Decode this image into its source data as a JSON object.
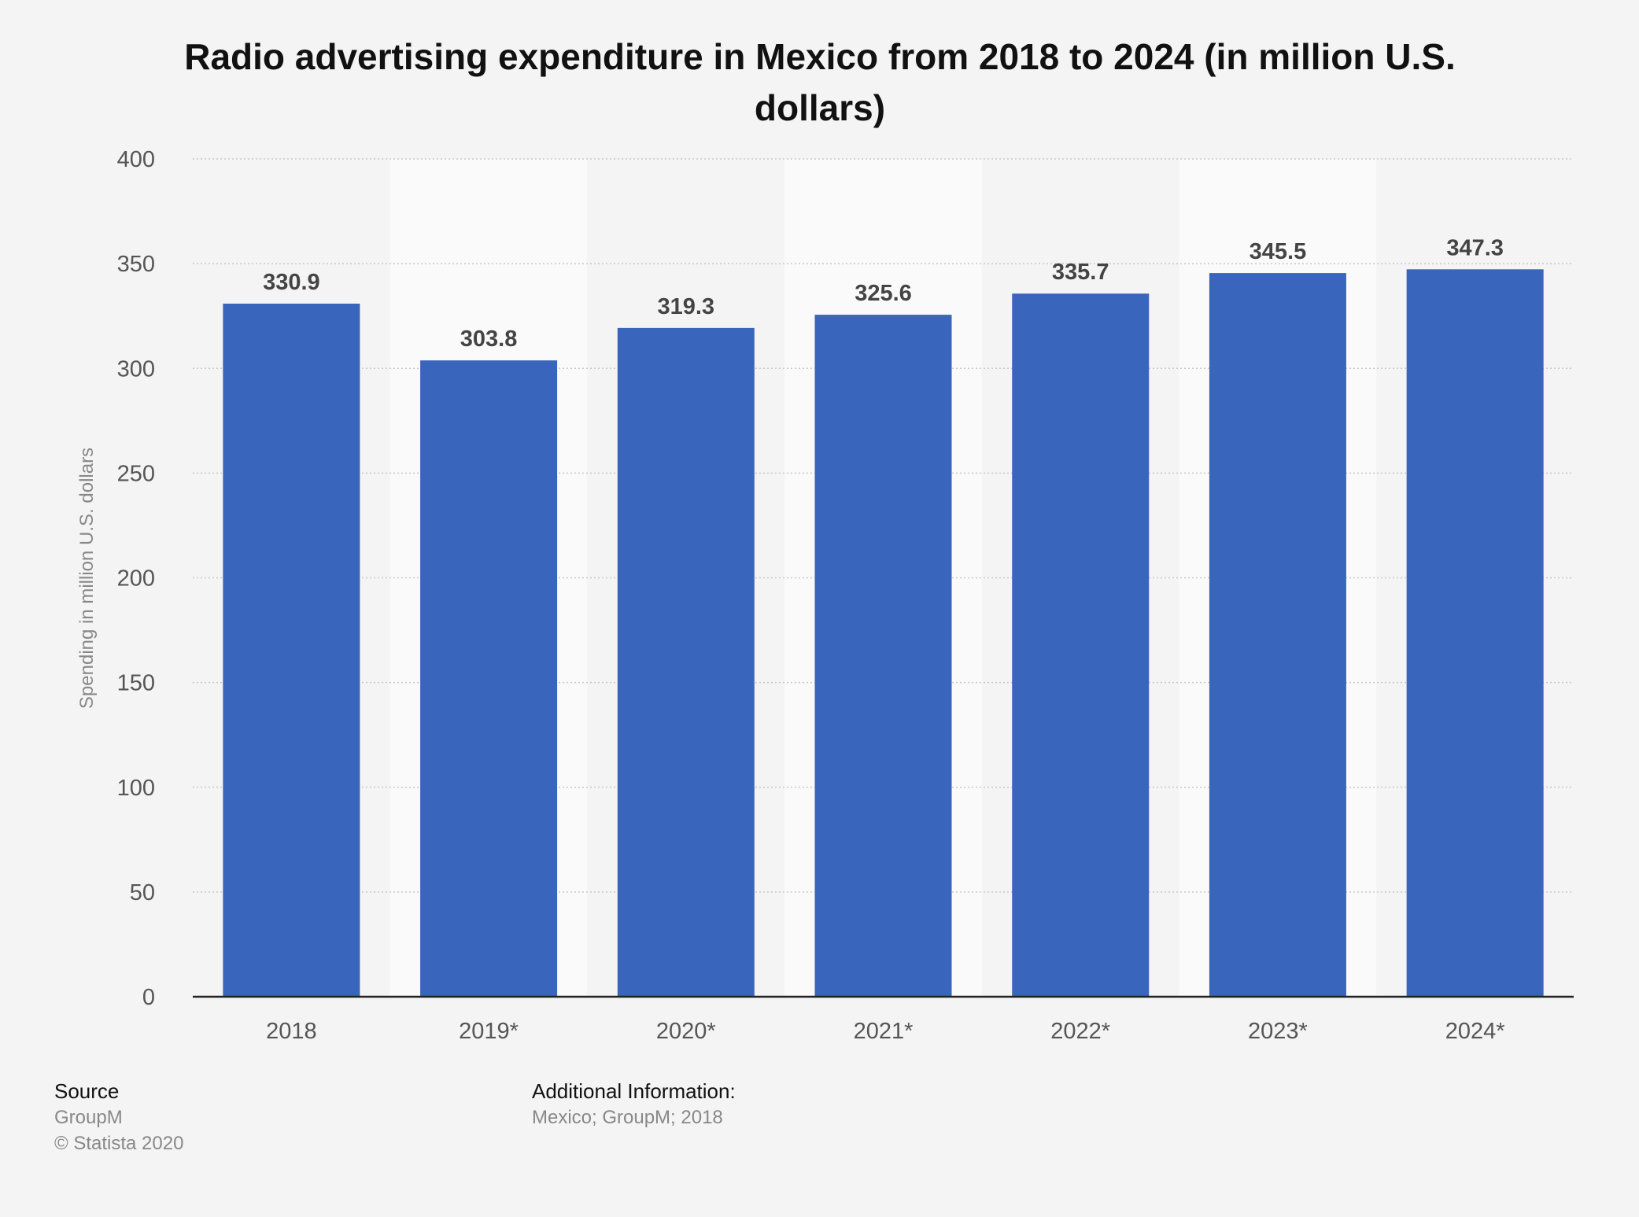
{
  "chart_data": {
    "type": "bar",
    "title_line1": "Radio advertising expenditure in Mexico from 2018 to 2024 (in million U.S.",
    "title_line2": "dollars)",
    "ylabel": "Spending in million U.S. dollars",
    "xlabel": "",
    "categories": [
      "2018",
      "2019*",
      "2020*",
      "2021*",
      "2022*",
      "2023*",
      "2024*"
    ],
    "values": [
      330.9,
      303.8,
      319.3,
      325.6,
      335.7,
      345.5,
      347.3
    ],
    "value_labels": [
      "330.9",
      "303.8",
      "319.3",
      "325.6",
      "335.7",
      "345.5",
      "347.3"
    ],
    "yticks": [
      "0",
      "50",
      "100",
      "150",
      "200",
      "250",
      "300",
      "350",
      "400"
    ],
    "ylim": [
      0,
      400
    ],
    "grid": true,
    "legend": "none",
    "bar_color": "#3a65bd"
  },
  "footer": {
    "source_heading": "Source",
    "source_name": "GroupM",
    "copyright": "© Statista 2020",
    "additional_heading": "Additional Information:",
    "additional_text": "Mexico; GroupM; 2018"
  }
}
